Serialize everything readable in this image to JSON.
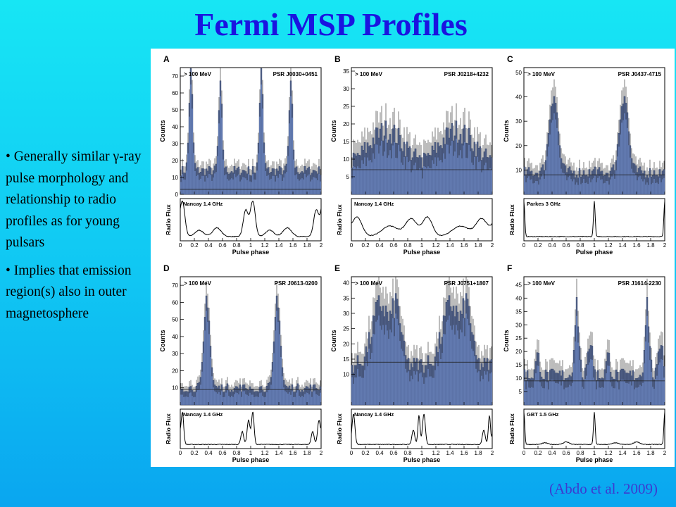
{
  "slide": {
    "title": "Fermi MSP Profiles",
    "bullets": [
      "• Generally similar γ-ray pulse morphology and relationship to radio profiles as for young pulsars",
      "• Implies that emission region(s) also in outer magnetosphere"
    ],
    "citation": "(Abdo et al. 2009)"
  },
  "colors": {
    "background": "#10c6f3",
    "title": "#1a14e0",
    "citation": "#3d3ad0",
    "bars": "#6d86be",
    "bar_edge": "#3b4d7c",
    "radio_line": "#000000"
  },
  "chart_data": [
    {
      "type": "bar",
      "panel": "A",
      "energy_label": "> 100 MeV",
      "psr": "PSR J0030+0451",
      "radio_label": "Nancay 1.4 GHz",
      "xlabel": "Pulse phase",
      "ylabel_top": "Counts",
      "ylabel_bottom": "Radio Flux",
      "xlim": [
        0,
        2
      ],
      "xticks": [
        0,
        0.2,
        0.4,
        0.6,
        0.8,
        1,
        1.2,
        1.4,
        1.6,
        1.8,
        2
      ],
      "ylim": [
        0,
        75
      ],
      "yticks": [
        0,
        10,
        20,
        30,
        40,
        50,
        60,
        70
      ],
      "background_level": 3,
      "gamma_peaks": [
        {
          "center": 0.15,
          "height": 72,
          "width": 0.025
        },
        {
          "center": 0.57,
          "height": 62,
          "width": 0.025
        }
      ],
      "gamma_floor": 14,
      "radio_peaks": [
        {
          "center": 0.03,
          "height": 1,
          "width": 0.035
        },
        {
          "center": 0.27,
          "height": 0.18,
          "width": 0.06
        },
        {
          "center": 0.52,
          "height": 0.25,
          "width": 0.06
        },
        {
          "center": 0.93,
          "height": 0.75,
          "width": 0.035
        }
      ]
    },
    {
      "type": "bar",
      "panel": "B",
      "energy_label": "> 100 MeV",
      "psr": "PSR J0218+4232",
      "radio_label": "Nancay 1.4 GHz",
      "xlabel": "Pulse phase",
      "ylabel_top": "Counts",
      "ylabel_bottom": "Radio Flux",
      "xlim": [
        0,
        2
      ],
      "xticks": [
        0,
        0.2,
        0.4,
        0.6,
        0.8,
        1,
        1.2,
        1.4,
        1.6,
        1.8,
        2
      ],
      "ylim": [
        0,
        36
      ],
      "yticks": [
        5,
        10,
        15,
        20,
        25,
        30,
        35
      ],
      "background_level": 7,
      "gamma_peaks": [
        {
          "center": 0.5,
          "height": 18,
          "width": 0.25
        }
      ],
      "gamma_floor": 8,
      "radio_peaks": [
        {
          "center": 0.08,
          "height": 0.55,
          "width": 0.07
        },
        {
          "center": 0.55,
          "height": 0.3,
          "width": 0.12
        },
        {
          "center": 0.85,
          "height": 0.5,
          "width": 0.08
        }
      ]
    },
    {
      "type": "bar",
      "panel": "C",
      "energy_label": "> 100 MeV",
      "psr": "PSR J0437-4715",
      "radio_label": "Parkes 3 GHz",
      "xlabel": "Pulse phase",
      "ylabel_top": "Counts",
      "ylabel_bottom": "Radio Flux",
      "xlim": [
        0,
        2
      ],
      "xticks": [
        0,
        0.2,
        0.4,
        0.6,
        0.8,
        1,
        1.2,
        1.4,
        1.6,
        1.8,
        2
      ],
      "ylim": [
        0,
        52
      ],
      "yticks": [
        10,
        20,
        30,
        40,
        50
      ],
      "background_level": 8,
      "gamma_peaks": [
        {
          "center": 0.42,
          "height": 42,
          "width": 0.06
        }
      ],
      "gamma_floor": 9,
      "radio_peaks": [
        {
          "center": 0.0,
          "height": 1,
          "width": 0.012
        }
      ]
    },
    {
      "type": "bar",
      "panel": "D",
      "energy_label": "> 100 MeV",
      "psr": "PSR J0613-0200",
      "radio_label": "Nancay 1.4 GHz",
      "xlabel": "Pulse phase",
      "ylabel_top": "Counts",
      "ylabel_bottom": "Radio Flux",
      "xlim": [
        0,
        2
      ],
      "xticks": [
        0,
        0.2,
        0.4,
        0.6,
        0.8,
        1,
        1.2,
        1.4,
        1.6,
        1.8,
        2
      ],
      "ylim": [
        0,
        75
      ],
      "yticks": [
        10,
        20,
        30,
        40,
        50,
        60,
        70
      ],
      "background_level": 9,
      "gamma_peaks": [
        {
          "center": 0.38,
          "height": 64,
          "width": 0.04
        }
      ],
      "gamma_floor": 10,
      "radio_peaks": [
        {
          "center": 0.03,
          "height": 1,
          "width": 0.018
        },
        {
          "center": 0.88,
          "height": 0.4,
          "width": 0.02
        },
        {
          "center": 0.97,
          "height": 0.75,
          "width": 0.02
        }
      ]
    },
    {
      "type": "bar",
      "panel": "E",
      "energy_label": "> 100 MeV",
      "psr": "PSR J0751+1807",
      "radio_label": "Nancay 1.4 GHz",
      "xlabel": "Pulse phase",
      "ylabel_top": "Counts",
      "ylabel_bottom": "Radio Flux",
      "xlim": [
        0,
        2
      ],
      "xticks": [
        0,
        0.2,
        0.4,
        0.6,
        0.8,
        1,
        1.2,
        1.4,
        1.6,
        1.8,
        2
      ],
      "ylim": [
        0,
        42
      ],
      "yticks": [
        10,
        15,
        20,
        25,
        30,
        35,
        40
      ],
      "background_level": 14,
      "gamma_peaks": [
        {
          "center": 0.42,
          "height": 33,
          "width": 0.12
        },
        {
          "center": 0.65,
          "height": 30,
          "width": 0.06
        }
      ],
      "gamma_floor": 13,
      "radio_peaks": [
        {
          "center": 0.03,
          "height": 0.95,
          "width": 0.02
        },
        {
          "center": 0.88,
          "height": 0.45,
          "width": 0.02
        },
        {
          "center": 0.96,
          "height": 0.9,
          "width": 0.015
        }
      ]
    },
    {
      "type": "bar",
      "panel": "F",
      "energy_label": "> 100 MeV",
      "psr": "PSR J1614-2230",
      "radio_label": "GBT 1.5 GHz",
      "xlabel": "Pulse phase",
      "ylabel_top": "Counts",
      "ylabel_bottom": "Radio Flux",
      "xlim": [
        0,
        2
      ],
      "xticks": [
        0,
        0.2,
        0.4,
        0.6,
        0.8,
        1,
        1.2,
        1.4,
        1.6,
        1.8,
        2
      ],
      "ylim": [
        0,
        48
      ],
      "yticks": [
        5,
        10,
        15,
        20,
        25,
        30,
        35,
        40,
        45
      ],
      "background_level": 9,
      "gamma_peaks": [
        {
          "center": 0.75,
          "height": 38,
          "width": 0.03
        },
        {
          "center": 0.95,
          "height": 25,
          "width": 0.03
        },
        {
          "center": 0.2,
          "height": 18,
          "width": 0.03
        }
      ],
      "gamma_floor": 11,
      "radio_peaks": [
        {
          "center": 0.0,
          "height": 1,
          "width": 0.012
        },
        {
          "center": 0.3,
          "height": 0.05,
          "width": 0.04
        },
        {
          "center": 0.6,
          "height": 0.08,
          "width": 0.04
        }
      ]
    }
  ]
}
